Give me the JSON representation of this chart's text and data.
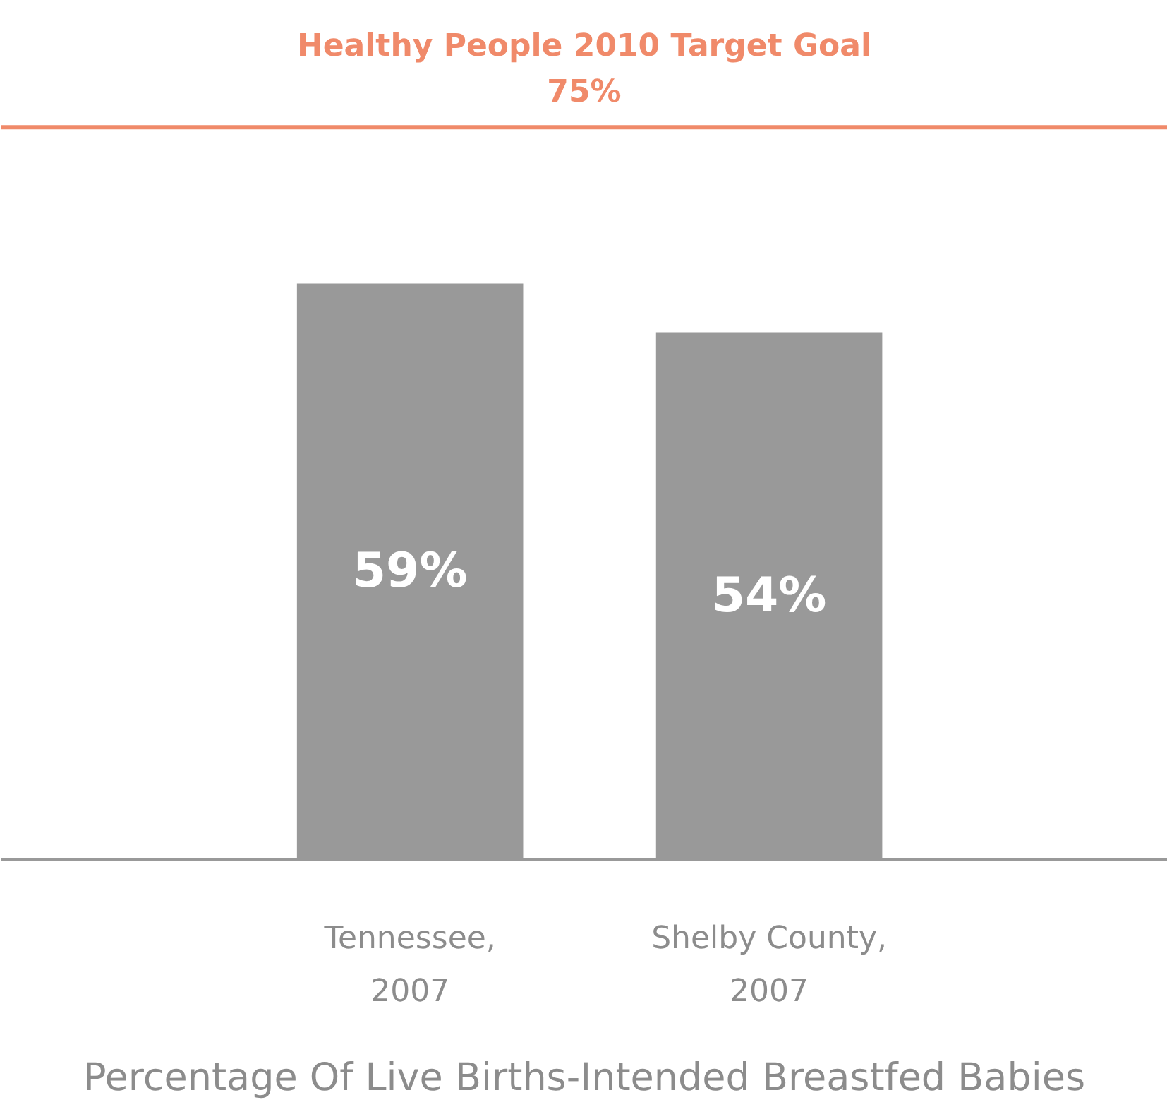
{
  "chart_data": {
    "type": "bar",
    "categories": [
      "Tennessee,\n2007",
      "Shelby County,\n2007"
    ],
    "values": [
      59,
      54
    ],
    "value_labels": [
      "59%",
      "54%"
    ],
    "color": "#999999",
    "tick_labels": "x",
    "xlabel": "Percentage Of Live Births-Intended Breastfed Babies",
    "ref_lines": [
      {
        "axis": "y",
        "value": 75,
        "label": "Healthy People 2010 Target Goal\n75%",
        "color": "#f08a6a"
      }
    ]
  }
}
